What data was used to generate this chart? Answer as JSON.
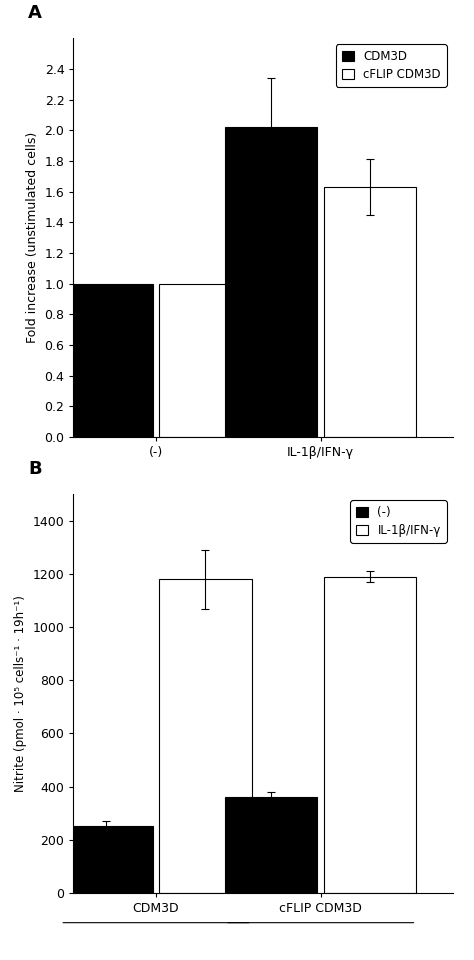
{
  "panel_A": {
    "label": "A",
    "groups": [
      "(-)",
      "IL-1β/IFN-γ"
    ],
    "CDM3D_values": [
      1.0,
      2.02
    ],
    "CDM3D_errors": [
      0.0,
      0.32
    ],
    "cFLIP_values": [
      1.0,
      1.63
    ],
    "cFLIP_errors": [
      0.0,
      0.18
    ],
    "ylabel": "Fold increase (unstimulated cells)",
    "ylim": [
      0.0,
      2.6
    ],
    "yticks": [
      0.0,
      0.2,
      0.4,
      0.6,
      0.8,
      1.0,
      1.2,
      1.4,
      1.6,
      1.8,
      2.0,
      2.2,
      2.4
    ],
    "legend_labels": [
      "CDM3D",
      "cFLIP CDM3D"
    ],
    "bar_colors": [
      "#000000",
      "#ffffff"
    ],
    "bar_width": 0.28
  },
  "panel_B": {
    "label": "B",
    "groups": [
      "CDM3D",
      "cFLIP CDM3D"
    ],
    "neg_values": [
      250,
      360
    ],
    "neg_errors": [
      20,
      20
    ],
    "stim_values": [
      1180,
      1190
    ],
    "stim_errors": [
      110,
      20
    ],
    "ylabel": "Nitrite (pmol · 10⁵ cells⁻¹ · 19h⁻¹)",
    "ylim": [
      0,
      1500
    ],
    "yticks": [
      0,
      200,
      400,
      600,
      800,
      1000,
      1200,
      1400
    ],
    "legend_labels": [
      "(-)",
      "IL-1β/IFN-γ"
    ],
    "bar_colors": [
      "#000000",
      "#ffffff"
    ],
    "bar_width": 0.28
  },
  "figure_bg": "#ffffff"
}
